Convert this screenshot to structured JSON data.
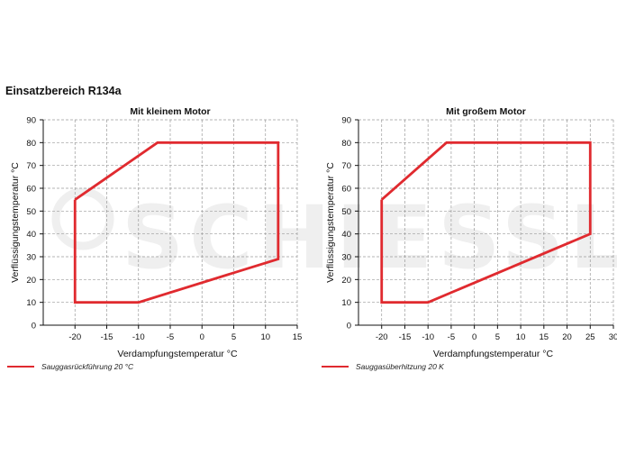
{
  "page": {
    "title": "Einsatzbereich R134a",
    "watermark_text": "SCHIESSL"
  },
  "colors": {
    "envelope": "#e02a2f",
    "grid": "#9a9a9a",
    "watermark": "#efefef"
  },
  "chart_data": [
    {
      "type": "line",
      "title": "Mit kleinem Motor",
      "xlabel": "Verdampfungstemperatur °C",
      "ylabel": "Verflüssigungstemperatur °C",
      "xlim": [
        -25,
        15
      ],
      "ylim": [
        0,
        90
      ],
      "xticks": [
        -20,
        -15,
        -10,
        -5,
        0,
        5,
        10,
        15
      ],
      "yticks": [
        0,
        10,
        20,
        30,
        40,
        50,
        60,
        70,
        80,
        90
      ],
      "grid": true,
      "series": [
        {
          "name": "Sauggasrückführung 20 °C",
          "x": [
            -20,
            -7,
            12,
            12,
            -10,
            -20,
            -20
          ],
          "y": [
            55,
            80,
            80,
            29,
            10,
            10,
            55
          ]
        }
      ]
    },
    {
      "type": "line",
      "title": "Mit großem Motor",
      "xlabel": "Verdampfungstemperatur °C",
      "ylabel": "Verflüssigungstemperatur °C",
      "xlim": [
        -25,
        30
      ],
      "ylim": [
        0,
        90
      ],
      "xticks": [
        -20,
        -15,
        -10,
        -5,
        0,
        5,
        10,
        15,
        20,
        25,
        30
      ],
      "yticks": [
        0,
        10,
        20,
        30,
        40,
        50,
        60,
        70,
        80,
        90
      ],
      "grid": true,
      "series": [
        {
          "name": "Sauggasüberhitzung 20 K",
          "x": [
            -20,
            -6,
            25,
            25,
            -10,
            -20,
            -20
          ],
          "y": [
            55,
            80,
            80,
            40,
            10,
            10,
            55
          ]
        }
      ]
    }
  ]
}
